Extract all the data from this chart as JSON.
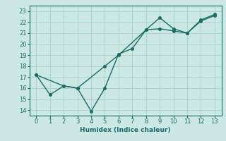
{
  "xlabel": "Humidex (Indice chaleur)",
  "ylabel": "",
  "xlim": [
    -0.5,
    13.5
  ],
  "ylim": [
    13.5,
    23.5
  ],
  "yticks": [
    14,
    15,
    16,
    17,
    18,
    19,
    20,
    21,
    22,
    23
  ],
  "xticks": [
    0,
    1,
    2,
    3,
    4,
    5,
    6,
    7,
    8,
    9,
    10,
    11,
    12,
    13
  ],
  "bg_color": "#cce8e4",
  "grid_color": "#aed4cf",
  "line_color": "#1a6b63",
  "line1_x": [
    0,
    1,
    2,
    3,
    4,
    5,
    6,
    7,
    8,
    9,
    10,
    11,
    12,
    13
  ],
  "line1_y": [
    17.2,
    15.4,
    16.2,
    16.0,
    13.9,
    16.0,
    19.1,
    19.6,
    21.3,
    22.4,
    21.4,
    21.0,
    22.1,
    22.6
  ],
  "line2_x": [
    0,
    2,
    3,
    5,
    6,
    8,
    9,
    10,
    11,
    12,
    13
  ],
  "line2_y": [
    17.2,
    16.2,
    16.0,
    18.0,
    19.0,
    21.3,
    21.4,
    21.2,
    21.0,
    22.2,
    22.7
  ],
  "marker": "o",
  "markersize": 2.5,
  "linewidth": 1.0
}
